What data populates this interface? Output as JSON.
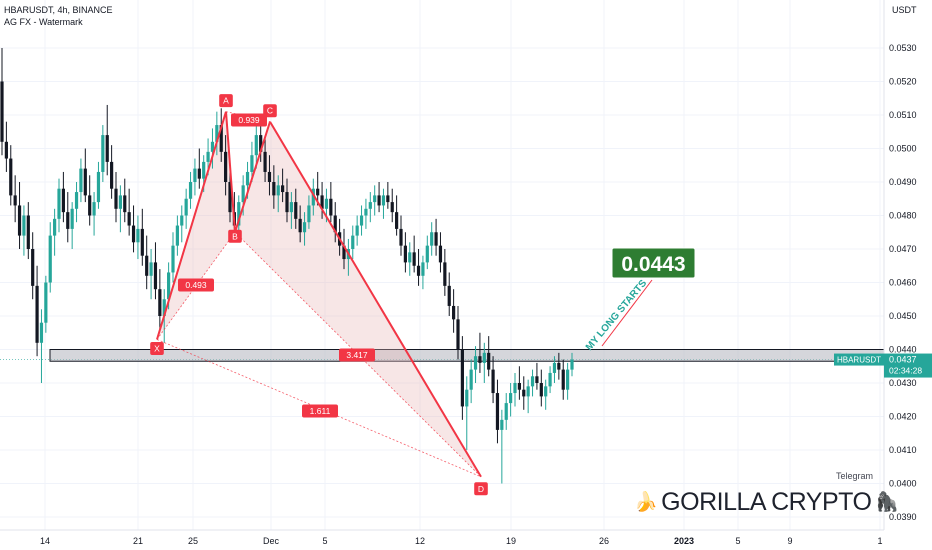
{
  "header": {
    "symbol_line": "HBARUSDT, 4h, BINANCE",
    "indicator_line": "AG FX - Watermark"
  },
  "watermark": {
    "telegram": "Telegram",
    "brand": "GORILLA CRYPTO",
    "left_icon": "banana-icon",
    "right_icon": "gorilla-icon"
  },
  "colors": {
    "up": "#26a69a",
    "down": "#131722",
    "pattern": "#f23645",
    "zone": "#b2b5be",
    "target_box": "#2e7d32",
    "axis_text": "#131722"
  },
  "chart_data": {
    "type": "candlestick",
    "title": "HBARUSDT, 4h, BINANCE",
    "price_axis": {
      "unit_label": "USDT",
      "ticks": [
        "0.0530",
        "0.0520",
        "0.0510",
        "0.0500",
        "0.0490",
        "0.0480",
        "0.0470",
        "0.0460",
        "0.0450",
        "0.0440",
        "0.0430",
        "0.0420",
        "0.0410",
        "0.0400",
        "0.0390"
      ],
      "range": [
        0.0387,
        0.0544
      ]
    },
    "time_axis": {
      "ticks": [
        "14",
        "21",
        "25",
        "Dec",
        "5",
        "12",
        "19",
        "26",
        "2023",
        "5",
        "9",
        "1"
      ]
    },
    "current_price": {
      "symbol": "HBARUSDT",
      "price": "0.0437",
      "countdown": "02:34:28"
    },
    "support_zone": [
      0.04365,
      0.044
    ],
    "harmonic_pattern": {
      "points": [
        {
          "label": "X",
          "price": 0.0443
        },
        {
          "label": "A",
          "price": 0.0511
        },
        {
          "label": "B",
          "price": 0.0475
        },
        {
          "label": "C",
          "price": 0.0508
        },
        {
          "label": "D",
          "price": 0.0402
        }
      ],
      "ratios": [
        {
          "value": "0.493"
        },
        {
          "value": "0.939"
        },
        {
          "value": "3.417"
        },
        {
          "value": "1.611"
        }
      ]
    },
    "annotation": {
      "text": "MY LONG STARTS",
      "target": "0.0443"
    },
    "candles": [
      [
        0.052,
        0.053,
        0.0498,
        0.0502
      ],
      [
        0.0502,
        0.0508,
        0.0493,
        0.0497
      ],
      [
        0.0497,
        0.0501,
        0.0483,
        0.0486
      ],
      [
        0.0486,
        0.0492,
        0.0478,
        0.0483
      ],
      [
        0.0483,
        0.049,
        0.047,
        0.0474
      ],
      [
        0.0474,
        0.0483,
        0.0468,
        0.048
      ],
      [
        0.048,
        0.0484,
        0.0467,
        0.047
      ],
      [
        0.047,
        0.0475,
        0.0455,
        0.0459
      ],
      [
        0.0459,
        0.0465,
        0.0438,
        0.0442
      ],
      [
        0.0442,
        0.0452,
        0.043,
        0.0448
      ],
      [
        0.0448,
        0.0462,
        0.0445,
        0.046
      ],
      [
        0.046,
        0.0478,
        0.0457,
        0.0474
      ],
      [
        0.0474,
        0.0482,
        0.0468,
        0.0479
      ],
      [
        0.0479,
        0.0491,
        0.0475,
        0.0488
      ],
      [
        0.0488,
        0.0493,
        0.0478,
        0.0481
      ],
      [
        0.0481,
        0.0487,
        0.0472,
        0.0476
      ],
      [
        0.0476,
        0.0484,
        0.047,
        0.0482
      ],
      [
        0.0482,
        0.049,
        0.0478,
        0.0487
      ],
      [
        0.0487,
        0.0497,
        0.0484,
        0.0494
      ],
      [
        0.0494,
        0.05,
        0.0484,
        0.0486
      ],
      [
        0.0486,
        0.0492,
        0.0477,
        0.048
      ],
      [
        0.048,
        0.0487,
        0.0474,
        0.0484
      ],
      [
        0.0484,
        0.0496,
        0.0482,
        0.0493
      ],
      [
        0.0493,
        0.0507,
        0.049,
        0.0504
      ],
      [
        0.0504,
        0.0513,
        0.0492,
        0.0496
      ],
      [
        0.0496,
        0.0501,
        0.0485,
        0.0488
      ],
      [
        0.0488,
        0.0493,
        0.0478,
        0.0482
      ],
      [
        0.0482,
        0.0489,
        0.0475,
        0.0486
      ],
      [
        0.0486,
        0.0491,
        0.0478,
        0.0481
      ],
      [
        0.0481,
        0.0488,
        0.0474,
        0.0477
      ],
      [
        0.0477,
        0.0483,
        0.0469,
        0.0472
      ],
      [
        0.0472,
        0.048,
        0.0467,
        0.0476
      ],
      [
        0.0476,
        0.0482,
        0.0465,
        0.0468
      ],
      [
        0.0468,
        0.0474,
        0.0458,
        0.0462
      ],
      [
        0.0462,
        0.047,
        0.0455,
        0.0466
      ],
      [
        0.0466,
        0.0472,
        0.0455,
        0.0458
      ],
      [
        0.0458,
        0.0464,
        0.0446,
        0.045
      ],
      [
        0.045,
        0.0458,
        0.0442,
        0.0455
      ],
      [
        0.0455,
        0.0466,
        0.0452,
        0.0463
      ],
      [
        0.0463,
        0.0475,
        0.046,
        0.0471
      ],
      [
        0.0471,
        0.048,
        0.0468,
        0.0477
      ],
      [
        0.0477,
        0.0483,
        0.0472,
        0.048
      ],
      [
        0.048,
        0.0488,
        0.0476,
        0.0485
      ],
      [
        0.0485,
        0.0493,
        0.0482,
        0.049
      ],
      [
        0.049,
        0.0497,
        0.0486,
        0.0494
      ],
      [
        0.0494,
        0.05,
        0.0488,
        0.0491
      ],
      [
        0.0491,
        0.0498,
        0.0487,
        0.0496
      ],
      [
        0.0496,
        0.0503,
        0.0492,
        0.0499
      ],
      [
        0.0499,
        0.0506,
        0.0494,
        0.0502
      ],
      [
        0.0502,
        0.0511,
        0.0498,
        0.0507
      ],
      [
        0.0507,
        0.0512,
        0.0496,
        0.0499
      ],
      [
        0.0499,
        0.0504,
        0.0486,
        0.049
      ],
      [
        0.049,
        0.0495,
        0.0478,
        0.0481
      ],
      [
        0.0481,
        0.0487,
        0.0474,
        0.0477
      ],
      [
        0.0477,
        0.0486,
        0.0475,
        0.0484
      ],
      [
        0.0484,
        0.0492,
        0.048,
        0.0489
      ],
      [
        0.0489,
        0.0496,
        0.0485,
        0.0493
      ],
      [
        0.0493,
        0.0502,
        0.049,
        0.0498
      ],
      [
        0.0498,
        0.0507,
        0.0494,
        0.0504
      ],
      [
        0.0504,
        0.051,
        0.0496,
        0.0499
      ],
      [
        0.0499,
        0.0503,
        0.049,
        0.0493
      ],
      [
        0.0493,
        0.0498,
        0.0486,
        0.049
      ],
      [
        0.049,
        0.0495,
        0.0482,
        0.0486
      ],
      [
        0.0486,
        0.0492,
        0.0481,
        0.0489
      ],
      [
        0.0489,
        0.0494,
        0.0484,
        0.0487
      ],
      [
        0.0487,
        0.0491,
        0.0478,
        0.0481
      ],
      [
        0.0481,
        0.0487,
        0.0476,
        0.0484
      ],
      [
        0.0484,
        0.0488,
        0.0476,
        0.0479
      ],
      [
        0.0479,
        0.0483,
        0.0472,
        0.0475
      ],
      [
        0.0475,
        0.0481,
        0.0471,
        0.0478
      ],
      [
        0.0478,
        0.0486,
        0.0476,
        0.0483
      ],
      [
        0.0483,
        0.0491,
        0.048,
        0.0488
      ],
      [
        0.0488,
        0.0493,
        0.0483,
        0.0486
      ],
      [
        0.0486,
        0.049,
        0.0479,
        0.0482
      ],
      [
        0.0482,
        0.0488,
        0.0478,
        0.0485
      ],
      [
        0.0485,
        0.049,
        0.0478,
        0.048
      ],
      [
        0.048,
        0.0484,
        0.0472,
        0.0475
      ],
      [
        0.0475,
        0.0479,
        0.0468,
        0.0471
      ],
      [
        0.0471,
        0.0476,
        0.0464,
        0.0467
      ],
      [
        0.0467,
        0.0473,
        0.0462,
        0.047
      ],
      [
        0.047,
        0.0477,
        0.0467,
        0.0474
      ],
      [
        0.0474,
        0.048,
        0.0471,
        0.0477
      ],
      [
        0.0477,
        0.0483,
        0.0474,
        0.048
      ],
      [
        0.048,
        0.0485,
        0.0476,
        0.0482
      ],
      [
        0.0482,
        0.0487,
        0.0478,
        0.0484
      ],
      [
        0.0484,
        0.0489,
        0.048,
        0.0486
      ],
      [
        0.0486,
        0.049,
        0.0481,
        0.0483
      ],
      [
        0.0483,
        0.0488,
        0.0479,
        0.0486
      ],
      [
        0.0486,
        0.049,
        0.0482,
        0.0484
      ],
      [
        0.0484,
        0.0488,
        0.0478,
        0.0481
      ],
      [
        0.0481,
        0.0486,
        0.0474,
        0.0476
      ],
      [
        0.0476,
        0.048,
        0.0468,
        0.0471
      ],
      [
        0.0471,
        0.0475,
        0.0463,
        0.0466
      ],
      [
        0.0466,
        0.0472,
        0.0462,
        0.0469
      ],
      [
        0.0469,
        0.0474,
        0.0463,
        0.0465
      ],
      [
        0.0465,
        0.047,
        0.0459,
        0.0462
      ],
      [
        0.0462,
        0.0468,
        0.0458,
        0.0466
      ],
      [
        0.0466,
        0.0474,
        0.0464,
        0.0471
      ],
      [
        0.0471,
        0.0478,
        0.0468,
        0.0475
      ],
      [
        0.0475,
        0.0479,
        0.0468,
        0.0471
      ],
      [
        0.0471,
        0.0475,
        0.0463,
        0.0466
      ],
      [
        0.0466,
        0.047,
        0.0456,
        0.0459
      ],
      [
        0.0459,
        0.0463,
        0.045,
        0.0453
      ],
      [
        0.0453,
        0.0458,
        0.0445,
        0.0449
      ],
      [
        0.0449,
        0.0453,
        0.0437,
        0.044
      ],
      [
        0.044,
        0.0444,
        0.0419,
        0.0423
      ],
      [
        0.0423,
        0.0432,
        0.041,
        0.0428
      ],
      [
        0.0428,
        0.0437,
        0.0424,
        0.0434
      ],
      [
        0.0434,
        0.0441,
        0.043,
        0.0438
      ],
      [
        0.0438,
        0.0445,
        0.0433,
        0.0436
      ],
      [
        0.0436,
        0.0442,
        0.043,
        0.0439
      ],
      [
        0.0439,
        0.0444,
        0.0432,
        0.0434
      ],
      [
        0.0434,
        0.0438,
        0.0424,
        0.0427
      ],
      [
        0.0427,
        0.0431,
        0.0412,
        0.0416
      ],
      [
        0.0416,
        0.0422,
        0.04,
        0.0419
      ],
      [
        0.0419,
        0.0427,
        0.0416,
        0.0424
      ],
      [
        0.0424,
        0.043,
        0.042,
        0.0427
      ],
      [
        0.0427,
        0.0433,
        0.0423,
        0.043
      ],
      [
        0.043,
        0.0435,
        0.0425,
        0.0428
      ],
      [
        0.0428,
        0.0432,
        0.0422,
        0.0426
      ],
      [
        0.0426,
        0.0431,
        0.0421,
        0.0429
      ],
      [
        0.0429,
        0.0434,
        0.0426,
        0.0432
      ],
      [
        0.0432,
        0.0436,
        0.0428,
        0.043
      ],
      [
        0.043,
        0.0434,
        0.0423,
        0.0426
      ],
      [
        0.0426,
        0.0431,
        0.0422,
        0.0429
      ],
      [
        0.0429,
        0.0435,
        0.0427,
        0.0433
      ],
      [
        0.0433,
        0.0438,
        0.043,
        0.0436
      ],
      [
        0.0436,
        0.0439,
        0.0431,
        0.0434
      ],
      [
        0.0434,
        0.0437,
        0.0425,
        0.0428
      ],
      [
        0.0428,
        0.0436,
        0.0425,
        0.0434
      ],
      [
        0.0434,
        0.0439,
        0.0432,
        0.0437
      ]
    ]
  }
}
